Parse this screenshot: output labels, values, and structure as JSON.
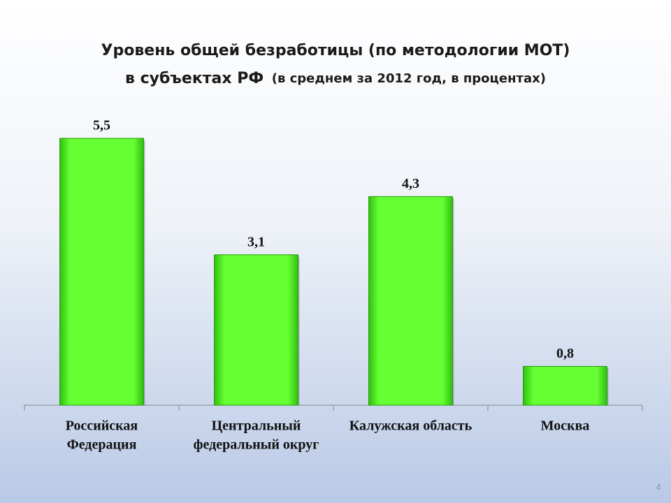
{
  "chart_data": {
    "type": "bar",
    "title": "Уровень общей безработицы (по методологии МОТ)",
    "subtitle": [
      "в субъектах РФ",
      "(в среднем за 2012 год, в процентах)"
    ],
    "categories": [
      [
        "Российская",
        "Федерация"
      ],
      [
        "Центральный",
        "федеральный округ"
      ],
      [
        "Калужская область"
      ],
      [
        "Москва"
      ]
    ],
    "values": [
      5.5,
      3.1,
      4.3,
      0.8
    ],
    "value_labels": [
      "5,5",
      "3,1",
      "4,3",
      "0,8"
    ],
    "color": "#66ff33"
  },
  "page_number": "4"
}
